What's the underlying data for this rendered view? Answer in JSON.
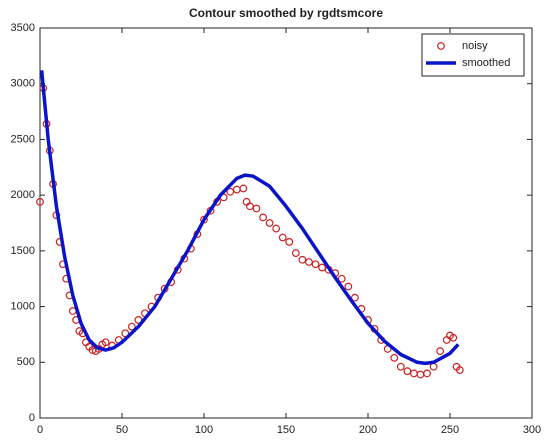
{
  "chart_data": {
    "type": "line",
    "title": "Contour smoothed by rgdtsmcore",
    "xlim": [
      0,
      300
    ],
    "xticks": [
      0,
      50,
      100,
      150,
      200,
      250,
      300
    ],
    "ylim": [
      0,
      3500
    ],
    "yticks": [
      0,
      500,
      1000,
      1500,
      2000,
      2500,
      3000,
      3500
    ],
    "grid": false,
    "legend": "top-right",
    "series": [
      {
        "name": "noisy",
        "type": "scatter",
        "color": "#cc2222",
        "x": [
          0,
          2,
          4,
          6,
          8,
          10,
          12,
          14,
          16,
          18,
          20,
          22,
          24,
          26,
          28,
          30,
          32,
          34,
          36,
          38,
          40,
          44,
          48,
          52,
          56,
          60,
          64,
          68,
          72,
          76,
          80,
          84,
          88,
          92,
          96,
          100,
          104,
          108,
          112,
          116,
          120,
          124,
          126,
          128,
          132,
          136,
          140,
          144,
          148,
          152,
          156,
          160,
          164,
          168,
          172,
          176,
          180,
          184,
          188,
          192,
          196,
          200,
          204,
          208,
          212,
          216,
          220,
          224,
          228,
          232,
          236,
          240,
          244,
          248,
          250,
          252,
          254,
          256
        ],
        "values": [
          1940,
          2960,
          2640,
          2400,
          2100,
          1820,
          1580,
          1380,
          1250,
          1100,
          960,
          880,
          780,
          760,
          680,
          640,
          610,
          600,
          620,
          660,
          680,
          650,
          700,
          760,
          820,
          880,
          940,
          1000,
          1080,
          1160,
          1220,
          1330,
          1430,
          1520,
          1650,
          1780,
          1860,
          1940,
          1980,
          2030,
          2050,
          2060,
          1940,
          1900,
          1880,
          1800,
          1750,
          1700,
          1620,
          1580,
          1480,
          1420,
          1400,
          1380,
          1350,
          1330,
          1300,
          1250,
          1180,
          1080,
          980,
          880,
          800,
          700,
          620,
          540,
          460,
          420,
          400,
          390,
          400,
          460,
          600,
          700,
          740,
          720,
          460,
          430
        ]
      },
      {
        "name": "smoothed",
        "type": "line",
        "color": "#0a14c8",
        "x": [
          1,
          5,
          10,
          15,
          20,
          25,
          30,
          35,
          40,
          45,
          50,
          60,
          70,
          80,
          90,
          100,
          110,
          120,
          125,
          130,
          140,
          150,
          160,
          170,
          180,
          190,
          200,
          210,
          220,
          230,
          235,
          240,
          250,
          255
        ],
        "values": [
          3120,
          2500,
          1900,
          1450,
          1100,
          850,
          700,
          630,
          610,
          630,
          680,
          820,
          1000,
          1250,
          1500,
          1780,
          2000,
          2150,
          2180,
          2170,
          2080,
          1900,
          1700,
          1480,
          1260,
          1050,
          850,
          690,
          570,
          500,
          490,
          500,
          580,
          660
        ]
      }
    ]
  }
}
